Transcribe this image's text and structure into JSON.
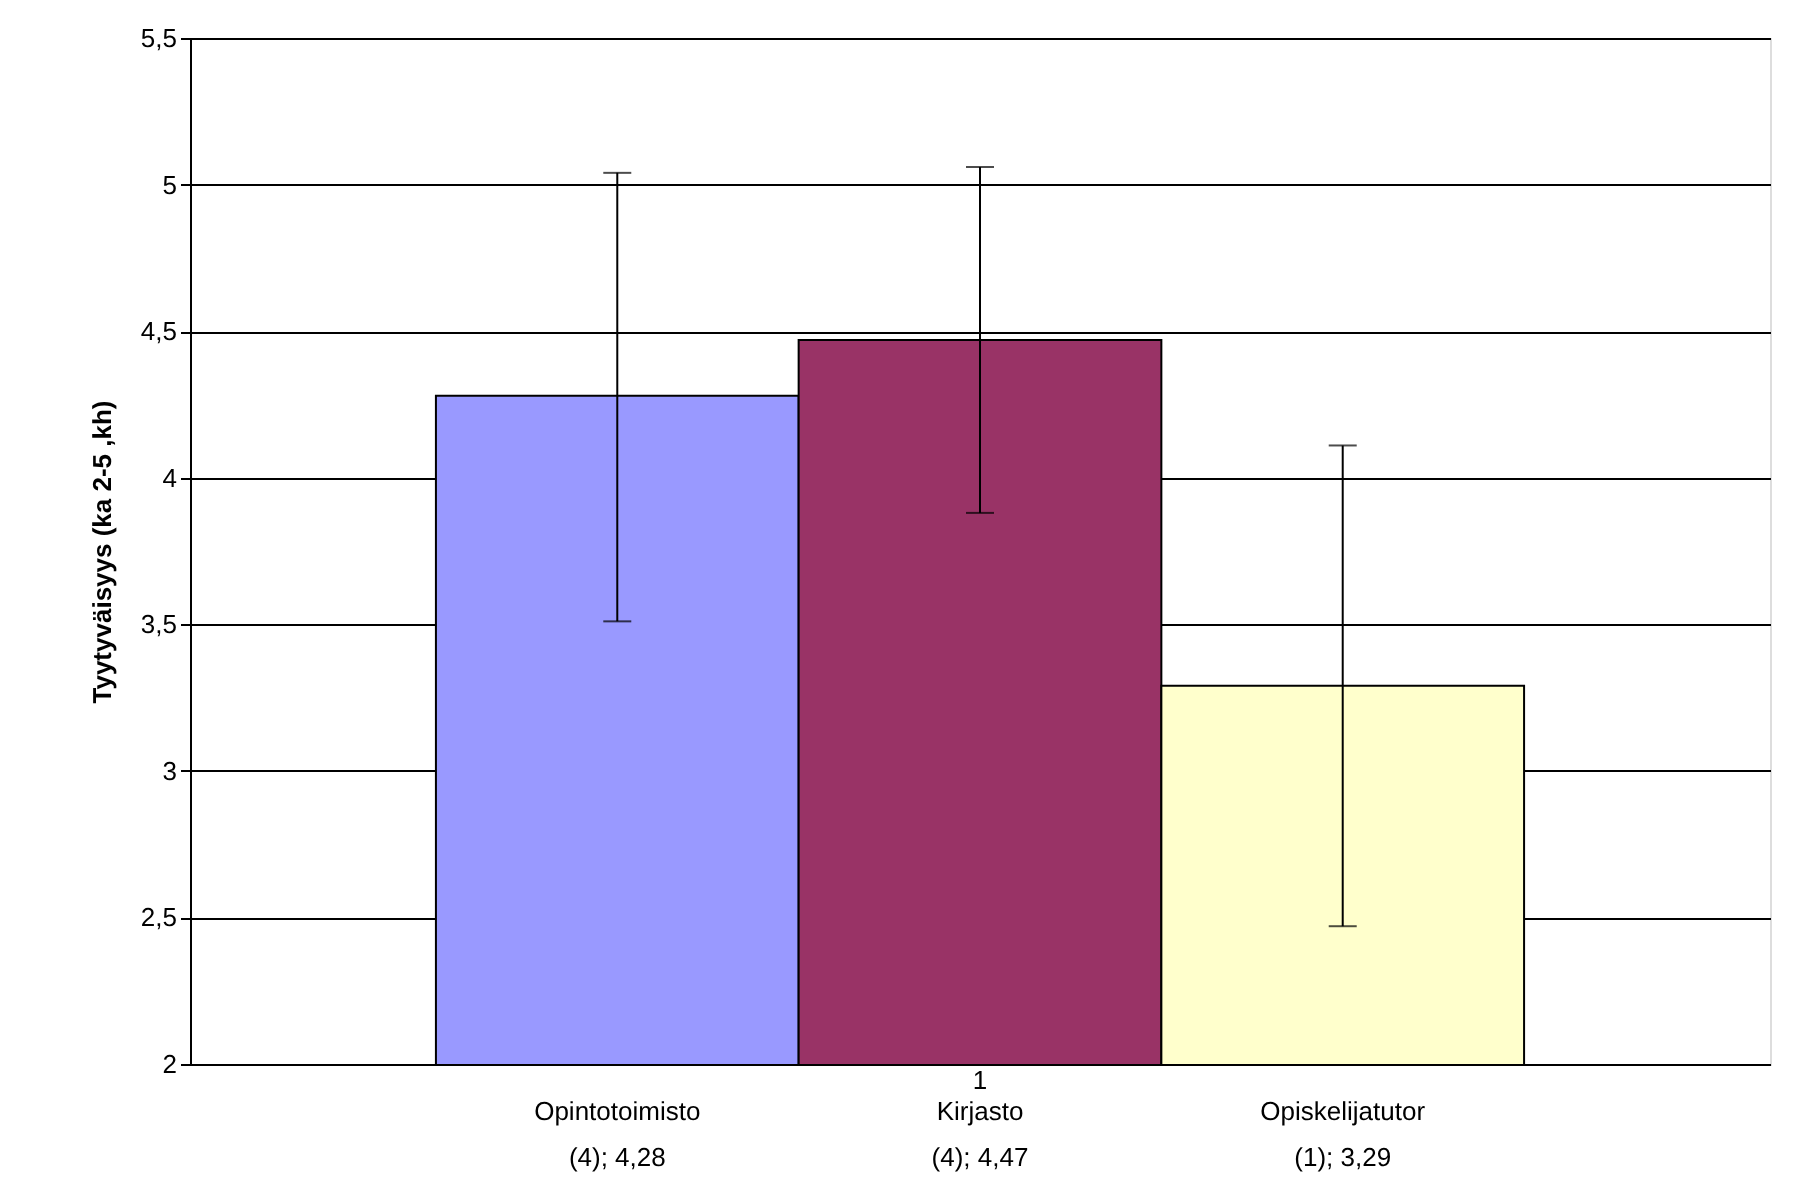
{
  "chart_data": {
    "type": "bar",
    "ylabel": "Tyytyväisyys (ka 2-5 ,kh)",
    "categories": [
      "1"
    ],
    "series": [
      {
        "name": "Opintotoimisto\n(4); 4,28",
        "color": "#9999ff",
        "values": [
          4.28
        ],
        "errors": [
          [
            3.51,
            5.04
          ]
        ]
      },
      {
        "name": "Kirjasto\n(4); 4,47",
        "color": "#993366",
        "values": [
          4.47
        ],
        "errors": [
          [
            3.88,
            5.06
          ]
        ]
      },
      {
        "name": "Opiskelijatutor\n(1); 3,29",
        "color": "#ffffcc",
        "values": [
          3.29
        ],
        "errors": [
          [
            2.47,
            4.11
          ]
        ]
      }
    ],
    "ylim": [
      2,
      5.5
    ],
    "yticks": [
      2,
      {
        "value": 2.5,
        "label": "2,5"
      },
      3,
      {
        "value": 3.5,
        "label": "3,5"
      },
      4,
      {
        "value": 4.5,
        "label": "4,5"
      },
      5,
      {
        "value": 5.5,
        "label": "5,5"
      }
    ],
    "grid": "y",
    "legend": false
  }
}
